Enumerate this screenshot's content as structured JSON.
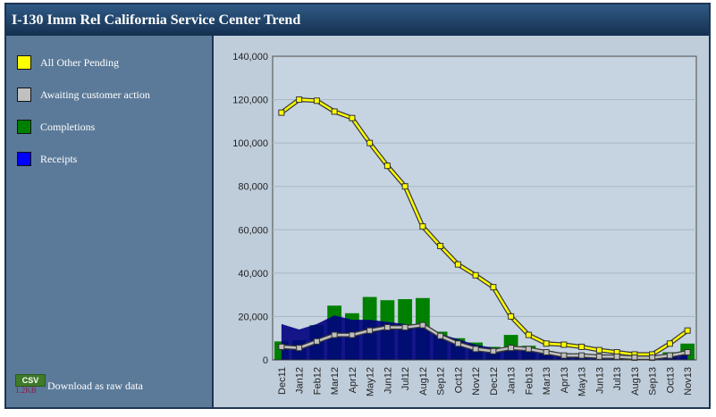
{
  "title": "I-130 Imm Rel California Service Center Trend",
  "legend": [
    {
      "label": "All Other Pending",
      "color": "#ffff00"
    },
    {
      "label": "Awaiting customer action",
      "color": "#c0c0c0"
    },
    {
      "label": "Completions",
      "color": "#008000"
    },
    {
      "label": "Receipts",
      "color": "#0000ff"
    }
  ],
  "download": {
    "badge": "CSV",
    "size": "1.2KB",
    "label": "Download as raw data"
  },
  "chart_data": {
    "type": "bar",
    "categories": [
      "Dec11",
      "Jan12",
      "Feb12",
      "Mar12",
      "Apr12",
      "May12",
      "Jun12",
      "Jul12",
      "Aug12",
      "Sep12",
      "Oct12",
      "Nov12",
      "Dec12",
      "Jan13",
      "Feb13",
      "Mar13",
      "Apr13",
      "May13",
      "Jun13",
      "Jul13",
      "Aug13",
      "Sep13",
      "Oct13",
      "Nov13"
    ],
    "ylim": [
      0,
      140000
    ],
    "yticks": [
      0,
      20000,
      40000,
      60000,
      80000,
      100000,
      120000,
      140000
    ],
    "ytick_labels": [
      "0",
      "20,000",
      "40,000",
      "60,000",
      "80,000",
      "100,000",
      "120,000",
      "140,000"
    ],
    "series": [
      {
        "name": "All Other Pending",
        "type": "line",
        "color": "#ffff00",
        "values": [
          114000,
          120000,
          119500,
          114500,
          111500,
          100000,
          89500,
          80000,
          61500,
          52500,
          44000,
          39000,
          33500,
          20000,
          11500,
          7500,
          7000,
          6000,
          4500,
          3500,
          2500,
          2500,
          7500,
          13500
        ]
      },
      {
        "name": "Awaiting customer action",
        "type": "line",
        "color": "#c0c0c0",
        "values": [
          6000,
          5500,
          8500,
          11500,
          11500,
          13500,
          15000,
          15000,
          16000,
          11000,
          7500,
          5000,
          4000,
          5500,
          5000,
          3500,
          2000,
          2000,
          1500,
          1500,
          1000,
          1000,
          2000,
          3500
        ]
      },
      {
        "name": "Completions",
        "type": "bar",
        "color": "#008000",
        "values": [
          8500,
          9000,
          16000,
          25000,
          21500,
          29000,
          27500,
          28000,
          28500,
          13000,
          10000,
          8000,
          6000,
          11500,
          6500,
          4000,
          3000,
          2500,
          2500,
          2000,
          1500,
          1500,
          3500,
          7500
        ]
      },
      {
        "name": "Receipts",
        "type": "area",
        "color": "#000080",
        "values": [
          16500,
          14000,
          16500,
          20500,
          18500,
          18500,
          17500,
          16500,
          15500,
          12000,
          9500,
          7000,
          5500,
          5000,
          4000,
          3000,
          2000,
          1500,
          1500,
          1500,
          1000,
          1000,
          2000,
          2500
        ]
      }
    ]
  }
}
